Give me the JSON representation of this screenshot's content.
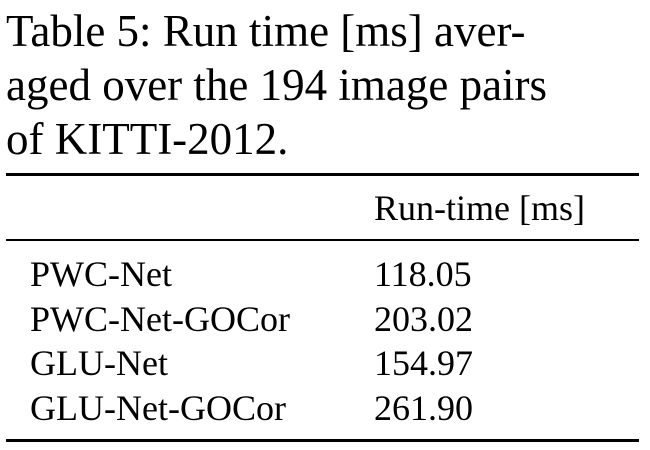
{
  "caption": {
    "lines": [
      "Table 5: Run time [ms] aver-",
      "aged over the 194 image pairs",
      "of KITTI-2012."
    ]
  },
  "table": {
    "column_header": "Run-time [ms]",
    "rows": [
      {
        "method": "PWC-Net",
        "value": "118.05"
      },
      {
        "method": "PWC-Net-GOCor",
        "value": "203.02"
      },
      {
        "method": "GLU-Net",
        "value": "154.97"
      },
      {
        "method": "GLU-Net-GOCor",
        "value": "261.90"
      }
    ]
  }
}
